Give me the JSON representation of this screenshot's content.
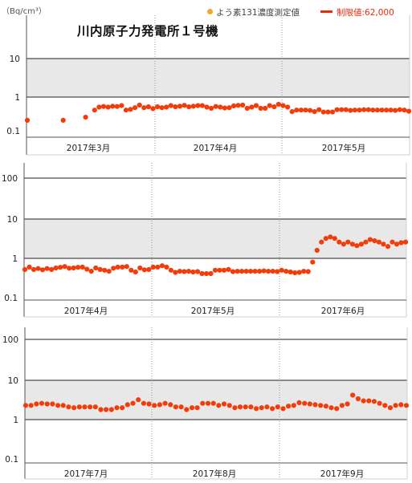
{
  "unit_label": "（Bq/cm³）",
  "title": "川内原子力発電所１号機",
  "legend": {
    "dot_label": "よう素131濃度測定値",
    "line_label": "制限値:62,000",
    "dot_color": "#f5a623",
    "line_color": "#e82a0a"
  },
  "colors": {
    "marker": "#f23d0b",
    "band": "#e8e8e8",
    "grid": "#222222",
    "axis": "#555555",
    "month_divider": "#999999"
  },
  "chart_data": [
    {
      "type": "scatter",
      "y_scale": "log",
      "ylim": [
        0.1,
        30
      ],
      "y_ticks": [
        "10",
        "1",
        "0.1"
      ],
      "x_labels": [
        "2017年3月",
        "2017年4月",
        "2017年5月"
      ],
      "shaded_band": [
        1,
        10
      ],
      "series": [
        {
          "values": [
            0.25,
            null,
            null,
            null,
            null,
            null,
            null,
            null,
            0.25,
            null,
            null,
            null,
            null,
            0.3,
            null,
            0.46,
            0.55,
            0.57,
            0.55,
            0.58,
            0.57,
            0.6,
            0.46,
            0.48,
            0.53,
            0.62,
            0.53,
            0.56,
            0.5,
            0.56,
            0.53,
            0.55,
            0.6,
            0.56,
            0.58,
            0.61,
            0.56,
            0.58,
            0.6,
            0.6,
            0.55,
            0.51,
            0.57,
            0.55,
            0.52,
            0.53,
            0.59,
            0.61,
            0.62,
            0.51,
            0.55,
            0.6,
            0.51,
            0.51,
            0.6,
            0.56,
            0.65,
            0.6,
            0.55,
            0.42,
            0.46,
            0.46,
            0.46,
            0.45,
            0.42,
            0.47,
            0.41,
            0.41,
            0.41,
            0.47,
            0.47,
            0.47,
            0.45,
            0.46,
            0.46,
            0.47,
            0.47,
            0.46,
            0.46,
            0.46,
            0.46,
            0.46,
            0.45,
            0.47,
            0.46,
            0.43
          ]
        }
      ]
    },
    {
      "type": "scatter",
      "y_scale": "log",
      "ylim": [
        0.1,
        150
      ],
      "y_ticks": [
        "100",
        "10",
        "1",
        "0.1"
      ],
      "x_labels": [
        "2017年4月",
        "2017年5月",
        "2017年6月"
      ],
      "shaded_band": [
        1,
        10
      ],
      "series": [
        {
          "values": [
            0.52,
            0.6,
            0.52,
            0.55,
            0.51,
            0.55,
            0.52,
            0.57,
            0.59,
            0.62,
            0.56,
            0.57,
            0.59,
            0.6,
            0.53,
            0.47,
            0.57,
            0.52,
            0.5,
            0.47,
            0.56,
            0.6,
            0.6,
            0.62,
            0.5,
            0.45,
            0.57,
            0.51,
            0.52,
            0.6,
            0.6,
            0.65,
            0.6,
            0.5,
            0.44,
            0.47,
            0.46,
            0.47,
            0.45,
            0.46,
            0.41,
            0.41,
            0.41,
            0.5,
            0.5,
            0.5,
            0.52,
            0.46,
            0.47,
            0.47,
            0.47,
            0.47,
            0.47,
            0.47,
            0.48,
            0.47,
            0.47,
            0.46,
            0.5,
            0.47,
            0.45,
            0.43,
            0.44,
            0.47,
            0.46,
            0.8,
            1.6,
            2.6,
            3.2,
            3.5,
            3.2,
            2.6,
            2.3,
            2.6,
            2.3,
            2.1,
            2.3,
            2.6,
            3.0,
            2.8,
            2.6,
            2.3,
            2.0,
            2.6,
            2.3,
            2.5,
            2.6
          ]
        }
      ]
    },
    {
      "type": "scatter",
      "y_scale": "log",
      "ylim": [
        0.1,
        150
      ],
      "y_ticks": [
        "100",
        "10",
        "1",
        "0.1"
      ],
      "x_labels": [
        "2017年7月",
        "2017年8月",
        "2017年9月"
      ],
      "shaded_band": [
        1,
        10
      ],
      "series": [
        {
          "values": [
            2.3,
            2.3,
            2.5,
            2.6,
            2.5,
            2.5,
            2.3,
            2.3,
            2.1,
            2.0,
            2.1,
            2.1,
            2.1,
            2.1,
            1.8,
            1.8,
            1.8,
            2.0,
            2.0,
            2.4,
            2.6,
            3.2,
            2.6,
            2.5,
            2.3,
            2.4,
            2.6,
            2.4,
            2.1,
            2.1,
            1.8,
            2.0,
            2.0,
            2.6,
            2.6,
            2.6,
            2.3,
            2.5,
            2.3,
            2.0,
            2.1,
            2.1,
            2.1,
            1.9,
            2.0,
            2.1,
            1.9,
            2.1,
            1.9,
            2.2,
            2.3,
            2.7,
            2.6,
            2.5,
            2.4,
            2.3,
            2.2,
            2.0,
            1.9,
            2.3,
            2.5,
            4.2,
            3.4,
            3.0,
            3.0,
            2.9,
            2.6,
            2.3,
            2.0,
            2.3,
            2.4,
            2.3
          ]
        }
      ]
    }
  ]
}
